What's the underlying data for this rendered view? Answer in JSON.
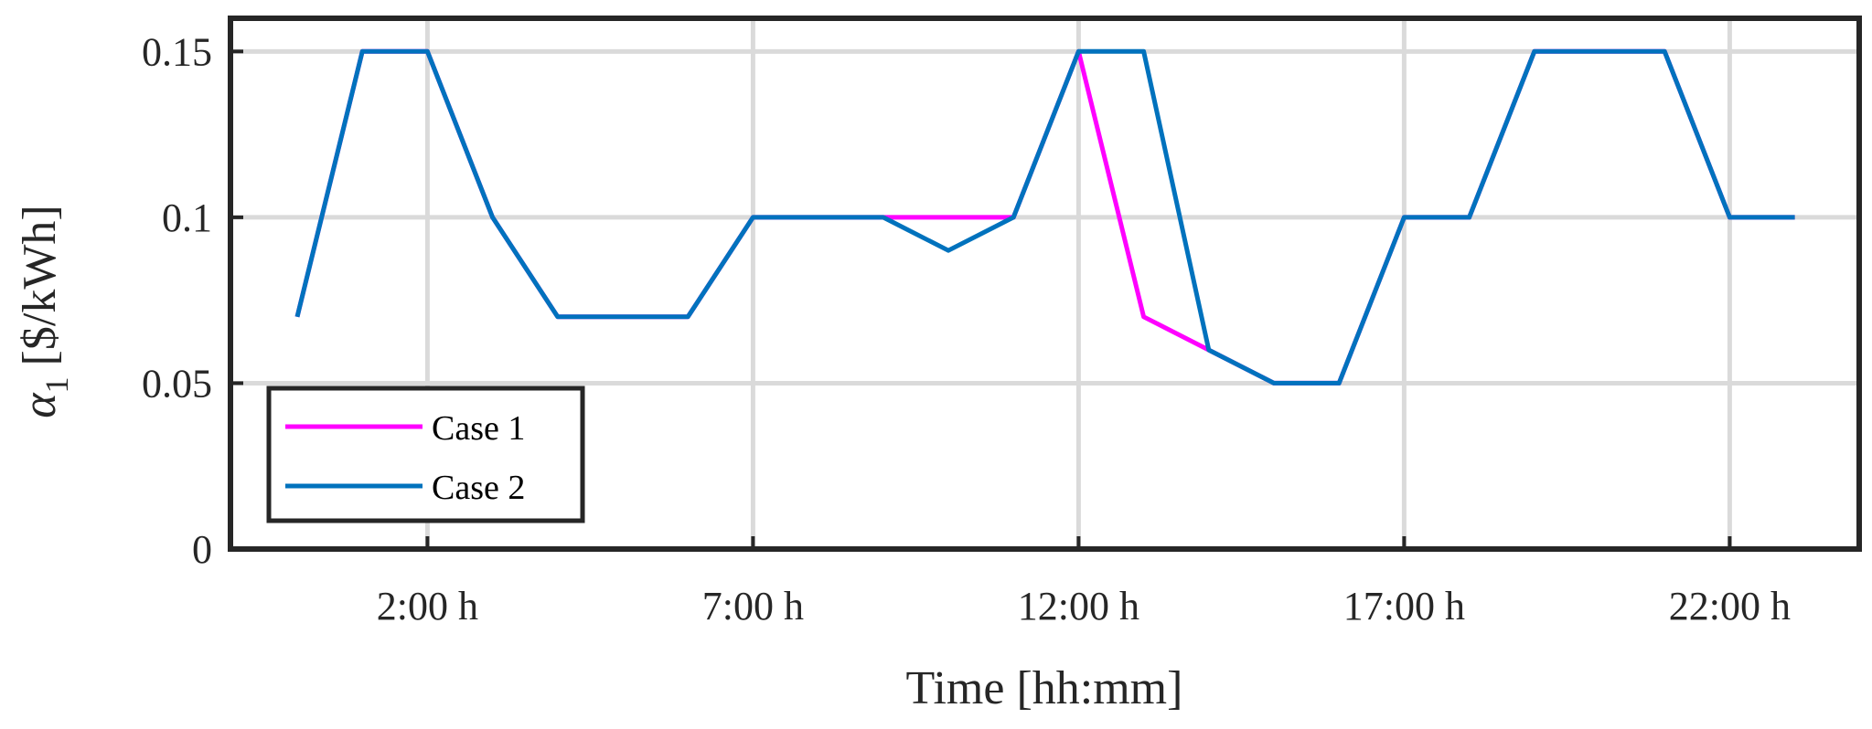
{
  "chart_data": {
    "type": "line",
    "xlabel": "Time [hh:mm]",
    "ylabel": "[$/kWh]",
    "ylabel_symbol": "α",
    "ylabel_subscript": "1",
    "xlim": [
      0,
      24
    ],
    "ylim": [
      0,
      0.16
    ],
    "x_ticks": [
      2,
      7,
      12,
      17,
      22
    ],
    "x_tick_labels": [
      "2:00 h",
      "7:00 h",
      "12:00 h",
      "17:00 h",
      "22:00 h"
    ],
    "y_ticks": [
      0,
      0.05,
      0.1,
      0.15
    ],
    "y_tick_labels": [
      "0",
      "0.05",
      "0.1",
      "0.15"
    ],
    "grid": true,
    "legend_position": "bottom-left",
    "x": [
      0,
      1,
      2,
      3,
      4,
      5,
      6,
      7,
      8,
      9,
      10,
      11,
      12,
      13,
      14,
      15,
      16,
      17,
      18,
      19,
      20,
      21,
      22,
      23
    ],
    "series": [
      {
        "name": "Case 1",
        "color": "#ff00ff",
        "values": [
          0.07,
          0.15,
          0.15,
          0.1,
          0.07,
          0.07,
          0.07,
          0.1,
          0.1,
          0.1,
          0.1,
          0.1,
          0.15,
          0.07,
          0.06,
          0.05,
          0.05,
          0.1,
          0.1,
          0.15,
          0.15,
          0.15,
          0.1,
          0.1
        ]
      },
      {
        "name": "Case 2",
        "color": "#0072bd",
        "values": [
          0.07,
          0.15,
          0.15,
          0.1,
          0.07,
          0.07,
          0.07,
          0.1,
          0.1,
          0.1,
          0.09,
          0.1,
          0.15,
          0.15,
          0.06,
          0.05,
          0.05,
          0.1,
          0.1,
          0.15,
          0.15,
          0.15,
          0.1,
          0.1
        ]
      }
    ]
  }
}
